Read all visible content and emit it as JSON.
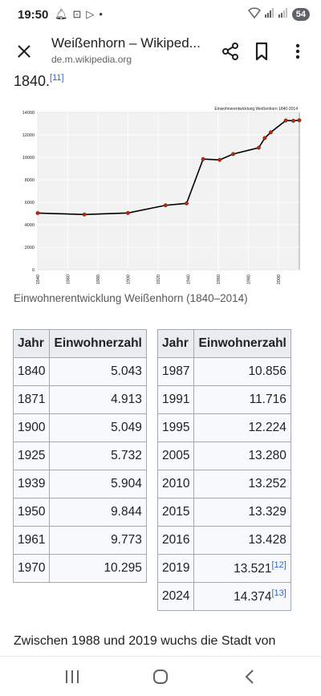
{
  "status": {
    "time": "19:50",
    "battery": "54"
  },
  "header": {
    "title": "Weißenhorn – Wikiped...",
    "url": "de.m.wikipedia.org"
  },
  "intro": {
    "text": "1840.",
    "ref": "[11]"
  },
  "chart_data": {
    "type": "line",
    "title": "Einwohnerentwicklung Weißenhorn 1840-2014",
    "x": [
      1840,
      1871,
      1900,
      1925,
      1939,
      1950,
      1961,
      1970,
      1987,
      1991,
      1995,
      2005,
      2010,
      2014
    ],
    "values": [
      5043,
      4913,
      5049,
      5732,
      5904,
      9844,
      9773,
      10295,
      10856,
      11716,
      12224,
      13280,
      13252,
      13300
    ],
    "xlim": [
      1840,
      2014
    ],
    "ylim": [
      0,
      14000
    ],
    "yticks": [
      0,
      2000,
      4000,
      6000,
      8000,
      10000,
      12000,
      14000
    ],
    "xticks": [
      1840,
      1860,
      1880,
      1900,
      1920,
      1940,
      1960,
      1980,
      2000
    ],
    "grid": true,
    "line_color": "#000000",
    "marker_color": "#cc2200"
  },
  "caption": "Einwohnerentwicklung Weißenhorn (1840–2014)",
  "table_left": {
    "headers": [
      "Jahr",
      "Einwohnerzahl"
    ],
    "rows": [
      [
        "1840",
        "5.043"
      ],
      [
        "1871",
        "4.913"
      ],
      [
        "1900",
        "5.049"
      ],
      [
        "1925",
        "5.732"
      ],
      [
        "1939",
        "5.904"
      ],
      [
        "1950",
        "9.844"
      ],
      [
        "1961",
        "9.773"
      ],
      [
        "1970",
        "10.295"
      ]
    ]
  },
  "table_right": {
    "headers": [
      "Jahr",
      "Einwohnerzahl"
    ],
    "rows": [
      [
        "1987",
        "10.856",
        ""
      ],
      [
        "1991",
        "11.716",
        ""
      ],
      [
        "1995",
        "12.224",
        ""
      ],
      [
        "2005",
        "13.280",
        ""
      ],
      [
        "2010",
        "13.252",
        ""
      ],
      [
        "2015",
        "13.329",
        ""
      ],
      [
        "2016",
        "13.428",
        ""
      ],
      [
        "2019",
        "13.521",
        "[12]"
      ],
      [
        "2024",
        "14.374",
        "[13]"
      ]
    ]
  },
  "paragraph": "Zwischen 1988 und 2019 wuchs die Stadt von",
  "colors": {
    "link": "#3366cc",
    "table_header": "#eaecf0",
    "table_border": "#a2a9b1"
  }
}
